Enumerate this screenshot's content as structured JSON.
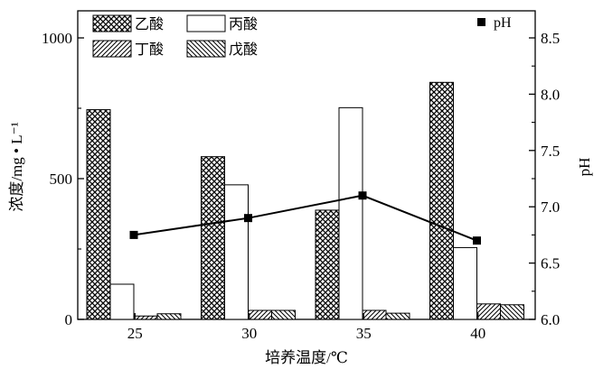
{
  "chart_data": {
    "type": "bar",
    "xlabel": "培养温度/℃",
    "ylabel": "浓度/mg • L⁻¹",
    "y2label": "pH",
    "categories": [
      "25",
      "30",
      "35",
      "40"
    ],
    "ylim": [
      0,
      1000
    ],
    "yticks": [
      "0",
      "500",
      "1000"
    ],
    "y2lim": [
      6.0,
      8.5
    ],
    "y2ticks": [
      "6.0",
      "6.5",
      "7.0",
      "7.5",
      "8.0",
      "8.5"
    ],
    "grid": false,
    "legend_position": "top",
    "series": [
      {
        "name": "乙酸",
        "pattern": "crosshatch",
        "values": [
          745,
          578,
          388,
          842
        ]
      },
      {
        "name": "丙酸",
        "pattern": "blank",
        "values": [
          125,
          478,
          752,
          255
        ]
      },
      {
        "name": "丁酸",
        "pattern": "forward-diagonal",
        "values": [
          12,
          32,
          32,
          55
        ]
      },
      {
        "name": "戊酸",
        "pattern": "back-diagonal",
        "values": [
          20,
          32,
          22,
          52
        ]
      }
    ],
    "line_series": {
      "name": "pH",
      "axis": "right",
      "values": [
        6.75,
        6.9,
        7.1,
        6.7
      ],
      "color": "#000000"
    }
  }
}
